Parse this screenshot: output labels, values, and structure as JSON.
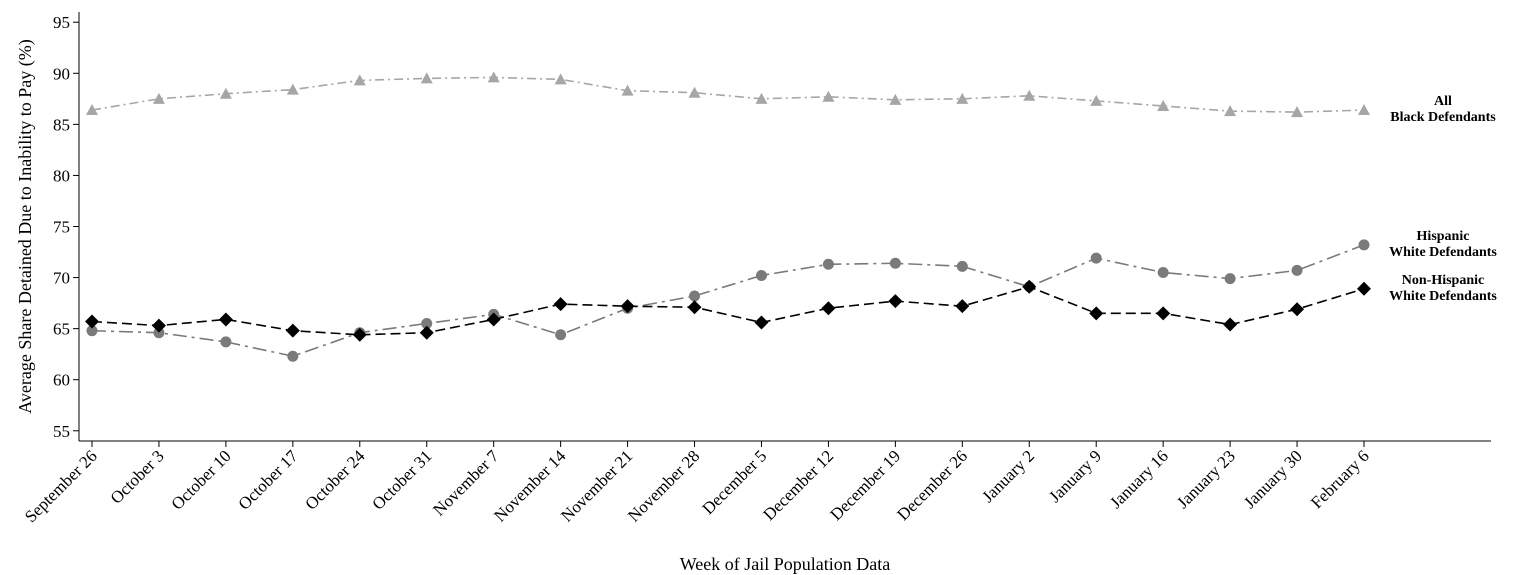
{
  "chart_data": {
    "type": "line",
    "xlabel": "Week of Jail Population Data",
    "ylabel": "Average Share Detained Due to Inability to Pay (%)",
    "ylim": [
      54,
      96
    ],
    "yticks": [
      55,
      60,
      65,
      70,
      75,
      80,
      85,
      90,
      95
    ],
    "grid": false,
    "categories": [
      "September 26",
      "October 3",
      "October 10",
      "October 17",
      "October 24",
      "October 31",
      "November 7",
      "November 14",
      "November 21",
      "November 28",
      "December 5",
      "December 12",
      "December 19",
      "December 26",
      "January 2",
      "January 9",
      "January 16",
      "January 23",
      "January 30",
      "February 6"
    ],
    "series": [
      {
        "name": "All Black Defendants",
        "label_lines": [
          "All",
          "Black Defendants"
        ],
        "marker": "triangle",
        "color": "#a6a6a6",
        "dash": "dash-dot",
        "values": [
          86.4,
          87.5,
          88.0,
          88.4,
          89.3,
          89.5,
          89.6,
          89.4,
          88.3,
          88.1,
          87.5,
          87.7,
          87.4,
          87.5,
          87.8,
          87.3,
          86.8,
          86.3,
          86.2,
          86.4
        ]
      },
      {
        "name": "Hispanic White Defendants",
        "label_lines": [
          "Hispanic",
          "White Defendants"
        ],
        "marker": "circle",
        "color": "#7a7a7a",
        "dash": "long-dash-dot",
        "values": [
          64.8,
          64.6,
          63.7,
          62.3,
          64.6,
          65.5,
          66.4,
          64.4,
          67.0,
          68.2,
          70.2,
          71.3,
          71.4,
          71.1,
          69.1,
          71.9,
          70.5,
          69.9,
          70.7,
          73.2
        ]
      },
      {
        "name": "Non-Hispanic White Defendants",
        "label_lines": [
          "Non-Hispanic",
          "White Defendants"
        ],
        "marker": "diamond",
        "color": "#000000",
        "dash": "dashed",
        "values": [
          65.7,
          65.3,
          65.9,
          64.8,
          64.4,
          64.6,
          65.9,
          67.4,
          67.2,
          67.1,
          65.6,
          67.0,
          67.7,
          67.2,
          69.1,
          66.5,
          66.5,
          65.4,
          66.9,
          68.9
        ]
      }
    ]
  }
}
